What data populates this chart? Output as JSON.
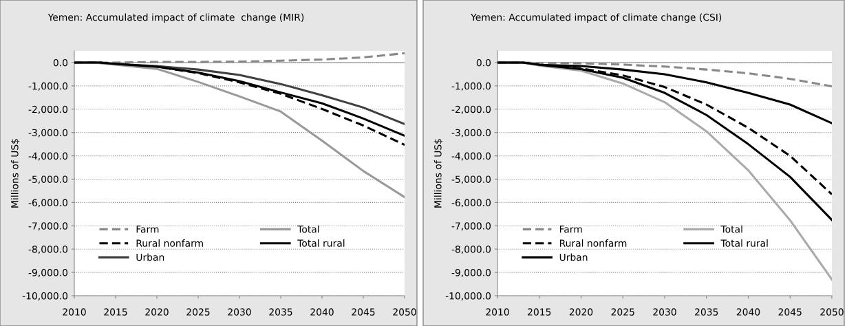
{
  "chart_data": [
    {
      "type": "line",
      "title": "Yemen: Accumulated impact of climate  change (MIR)",
      "ylabel": "Millions of US$",
      "x": [
        2010,
        2013,
        2015,
        2020,
        2025,
        2030,
        2035,
        2040,
        2045,
        2050
      ],
      "series": [
        {
          "name": "Farm",
          "color": "#888888",
          "line_style": "dashed",
          "values": [
            0,
            0,
            0,
            30,
            30,
            40,
            80,
            130,
            220,
            400
          ]
        },
        {
          "name": "Rural nonfarm",
          "color": "#000000",
          "line_style": "dashed",
          "values": [
            0,
            0,
            -60,
            -180,
            -450,
            -850,
            -1340,
            -1990,
            -2700,
            -3530
          ]
        },
        {
          "name": "Urban",
          "color": "#404040",
          "line_style": "solid",
          "values": [
            0,
            0,
            -60,
            -150,
            -300,
            -530,
            -920,
            -1400,
            -1930,
            -2640
          ]
        },
        {
          "name": "Total",
          "color": "#999999",
          "line_style": "solid",
          "values": [
            0,
            -20,
            -90,
            -270,
            -830,
            -1450,
            -2100,
            -3350,
            -4650,
            -5770
          ]
        },
        {
          "name": "Total rural",
          "color": "#000000",
          "line_style": "solid",
          "values": [
            0,
            0,
            -60,
            -180,
            -430,
            -800,
            -1280,
            -1750,
            -2400,
            -3140
          ]
        }
      ],
      "xlim": [
        2010,
        2050
      ],
      "xticks": [
        2010,
        2015,
        2020,
        2025,
        2030,
        2035,
        2040,
        2045,
        2050
      ],
      "ylim": [
        -10000,
        500
      ],
      "yticks": [
        {
          "value": 0,
          "label": "0.0"
        },
        {
          "value": -1000,
          "label": "-1,000.0"
        },
        {
          "value": -2000,
          "label": "-2,000.0"
        },
        {
          "value": -3000,
          "label": "-3,000.0"
        },
        {
          "value": -4000,
          "label": "-4,000.0"
        },
        {
          "value": -5000,
          "label": "-5,000.0"
        },
        {
          "value": -6000,
          "label": "-6,000.0"
        },
        {
          "value": -7000,
          "label": "-7,000.0"
        },
        {
          "value": -8000,
          "label": "-8,000.0"
        },
        {
          "value": -9000,
          "label": "-9,000.0"
        },
        {
          "value": -10000,
          "label": "-10,000.0"
        }
      ],
      "grid": "y",
      "legend": "bottom left",
      "marker": "none"
    },
    {
      "type": "line",
      "title": "Yemen: Accumulated impact of climate change (CSI)",
      "ylabel": "Millions of US$",
      "x": [
        2010,
        2013,
        2015,
        2020,
        2025,
        2030,
        2035,
        2040,
        2045,
        2050
      ],
      "series": [
        {
          "name": "Farm",
          "color": "#888888",
          "line_style": "dashed",
          "values": [
            0,
            0,
            -20,
            -30,
            -90,
            -170,
            -300,
            -460,
            -700,
            -1020
          ]
        },
        {
          "name": "Rural nonfarm",
          "color": "#000000",
          "line_style": "dashed",
          "values": [
            0,
            0,
            -100,
            -250,
            -550,
            -1050,
            -1800,
            -2800,
            -4000,
            -5650
          ]
        },
        {
          "name": "Urban",
          "color": "#000000",
          "line_style": "solid",
          "values": [
            0,
            0,
            -100,
            -150,
            -300,
            -500,
            -850,
            -1300,
            -1800,
            -2600
          ]
        },
        {
          "name": "Total",
          "color": "#aaaaaa",
          "line_style": "solid",
          "values": [
            0,
            0,
            -130,
            -350,
            -900,
            -1700,
            -2950,
            -4620,
            -6760,
            -9300
          ]
        },
        {
          "name": "Total rural",
          "color": "#000000",
          "line_style": "solid",
          "values": [
            0,
            0,
            -100,
            -280,
            -650,
            -1300,
            -2250,
            -3500,
            -4900,
            -6750
          ]
        }
      ],
      "xlim": [
        2010,
        2050
      ],
      "xticks": [
        2010,
        2015,
        2020,
        2025,
        2030,
        2035,
        2040,
        2045,
        2050
      ],
      "ylim": [
        -10000,
        500
      ],
      "yticks": [
        {
          "value": 0,
          "label": "0.0"
        },
        {
          "value": -1000,
          "label": "-1,000.0"
        },
        {
          "value": -2000,
          "label": "-2,000.0"
        },
        {
          "value": -3000,
          "label": "-3,000.0"
        },
        {
          "value": -4000,
          "label": "-4,000.0"
        },
        {
          "value": -5000,
          "label": "-5,000.0"
        },
        {
          "value": -6000,
          "label": "-6,000.0"
        },
        {
          "value": -7000,
          "label": "-7,000.0"
        },
        {
          "value": -8000,
          "label": "-8,000.0"
        },
        {
          "value": -9000,
          "label": "-9,000.0"
        },
        {
          "value": -10000,
          "label": "-10,000.0"
        }
      ],
      "grid": "y",
      "legend": "bottom left",
      "marker": "none"
    }
  ]
}
